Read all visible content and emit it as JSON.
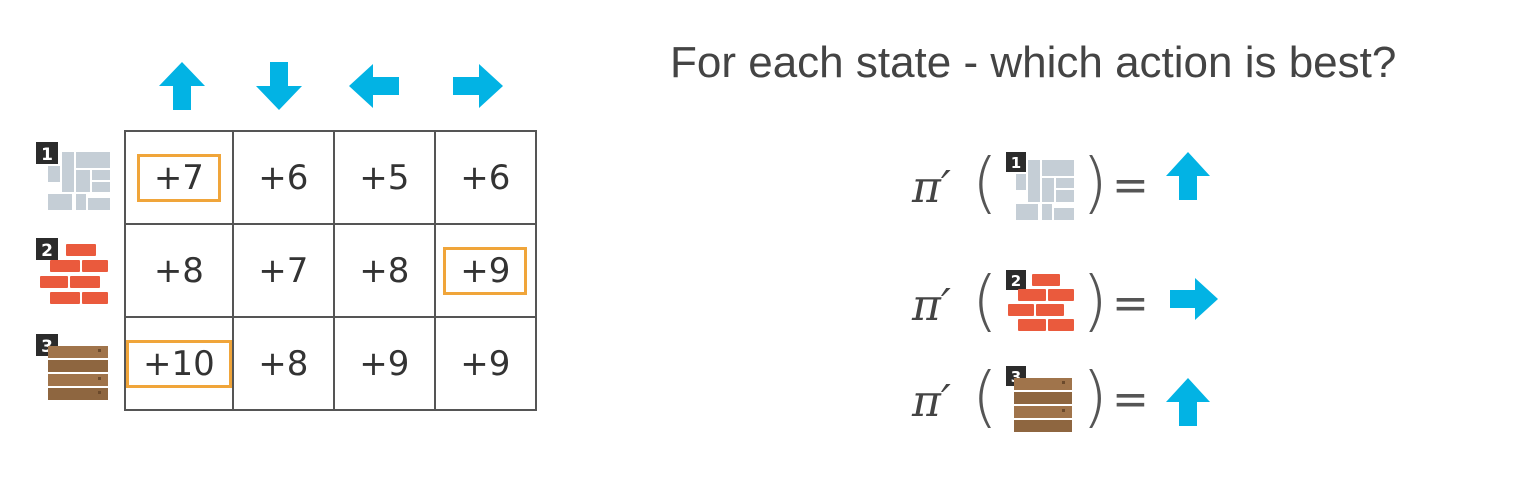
{
  "title": "For each state - which action is best?",
  "actions": [
    {
      "name": "up",
      "icon": "arrow-up-icon"
    },
    {
      "name": "down",
      "icon": "arrow-down-icon"
    },
    {
      "name": "left",
      "icon": "arrow-left-icon"
    },
    {
      "name": "right",
      "icon": "arrow-right-icon"
    }
  ],
  "states": [
    {
      "number": "1",
      "icon": "gray-tiles-icon"
    },
    {
      "number": "2",
      "icon": "red-bricks-icon"
    },
    {
      "number": "3",
      "icon": "wood-planks-icon"
    }
  ],
  "q_values": [
    [
      "+7",
      "+6",
      "+5",
      "+6"
    ],
    [
      "+8",
      "+7",
      "+8",
      "+9"
    ],
    [
      "+10",
      "+8",
      "+9",
      "+9"
    ]
  ],
  "best_action_index": [
    0,
    3,
    0
  ],
  "policy_symbol": "π′",
  "equals": "=",
  "colors": {
    "arrow": "#02b3e4",
    "highlight": "#f0a53a",
    "tile_gray": "#c5ced6",
    "brick_red": "#ea5a3d",
    "wood": "#a0744b",
    "badge": "#2b2b2b"
  }
}
